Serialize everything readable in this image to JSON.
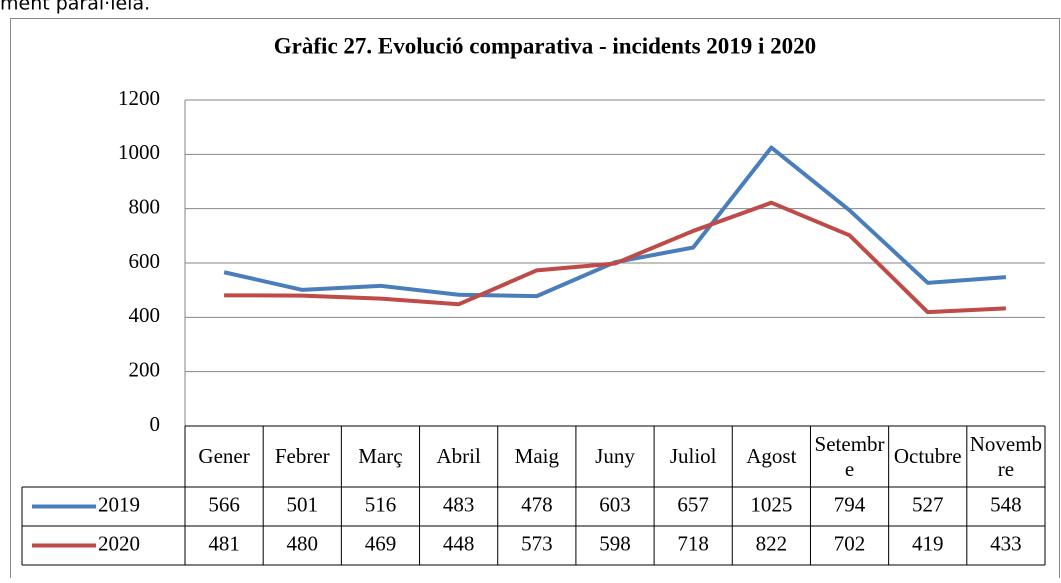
{
  "caption": "ment paral·lela.",
  "chart_data": {
    "type": "line",
    "title": "Gràfic 27. Evolució comparativa - incidents 2019 i 2020",
    "categories": [
      "Gener",
      "Febrer",
      "Març",
      "Abril",
      "Maig",
      "Juny",
      "Juliol",
      "Agost",
      "Setembre",
      "Octubre",
      "Novembre"
    ],
    "series": [
      {
        "name": "2019",
        "color": "#4a7ebb",
        "values": [
          566,
          501,
          516,
          483,
          478,
          603,
          657,
          1025,
          794,
          527,
          548
        ]
      },
      {
        "name": "2020",
        "color": "#be4b48",
        "values": [
          481,
          480,
          469,
          448,
          573,
          598,
          718,
          822,
          702,
          419,
          433
        ]
      }
    ],
    "ylim": [
      0,
      1200
    ],
    "yticks": [
      0,
      200,
      400,
      600,
      800,
      1000,
      1200
    ],
    "grid": true,
    "data_table": true
  }
}
